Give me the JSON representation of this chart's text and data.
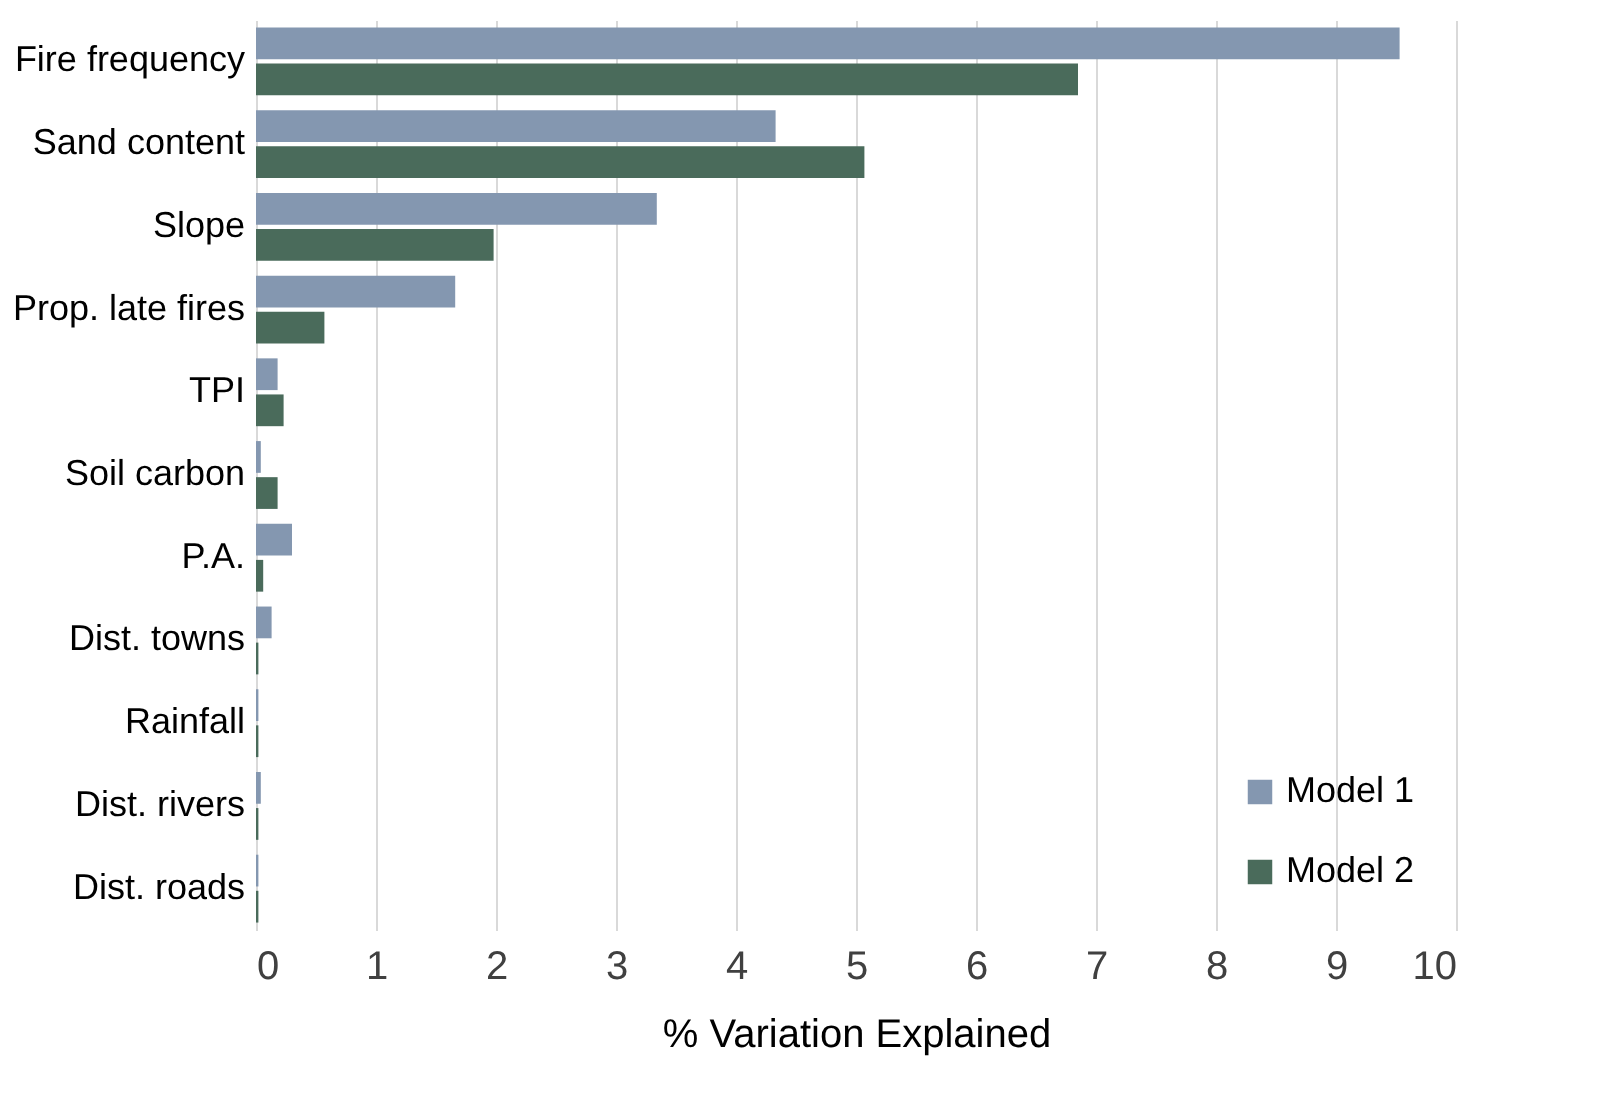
{
  "chart_data": {
    "type": "bar",
    "orientation": "horizontal",
    "xlabel": "% Variation Explained",
    "categories": [
      "Fire frequency",
      "Sand content",
      "Slope",
      "Prop. late fires",
      "TPI",
      "Soil carbon",
      "P.A.",
      "Dist. towns",
      "Rainfall",
      "Dist. rivers",
      "Dist. roads"
    ],
    "series": [
      {
        "name": "Model 1",
        "color": "#8497b0",
        "values": [
          9.53,
          4.33,
          3.34,
          1.66,
          0.18,
          0.04,
          0.3,
          0.13,
          0.02,
          0.04,
          0.02
        ]
      },
      {
        "name": "Model 2",
        "color": "#4a6b5b",
        "values": [
          6.85,
          5.07,
          1.98,
          0.57,
          0.23,
          0.18,
          0.06,
          0.02,
          0.02,
          0.02,
          0.02
        ]
      }
    ],
    "xlim": [
      0,
      10
    ],
    "xticks": [
      0,
      1,
      2,
      3,
      4,
      5,
      6,
      7,
      8,
      9,
      10
    ],
    "grid": "x",
    "legend": "bottom right"
  }
}
